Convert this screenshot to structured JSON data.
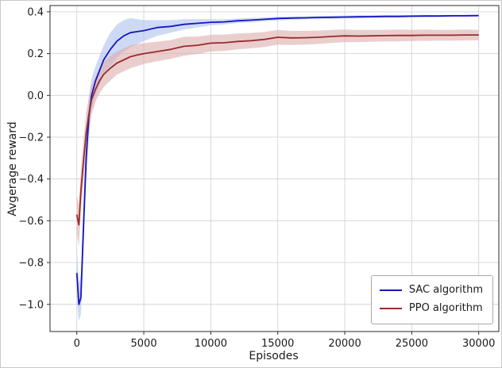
{
  "chart_data": {
    "type": "line",
    "title": "",
    "xlabel": "Episodes",
    "ylabel": "Avgerage reward",
    "xlim": [
      -2000,
      31500
    ],
    "ylim": [
      -1.13,
      0.43
    ],
    "xticks": [
      0,
      5000,
      10000,
      15000,
      20000,
      25000,
      30000
    ],
    "yticks": [
      -1.0,
      -0.8,
      -0.6,
      -0.4,
      -0.2,
      0.0,
      0.2,
      0.4
    ],
    "grid": true,
    "grid_color": "#d4d4d4",
    "legend_position": "lower right",
    "x": [
      0,
      150,
      300,
      500,
      700,
      900,
      1100,
      1400,
      1700,
      2000,
      2500,
      3000,
      3500,
      4000,
      4500,
      5000,
      6000,
      7000,
      8000,
      9000,
      10000,
      11000,
      12000,
      13000,
      14000,
      15000,
      16000,
      17000,
      18000,
      19000,
      20000,
      21000,
      22000,
      23000,
      24000,
      25000,
      26000,
      27000,
      28000,
      29000,
      30000
    ],
    "series": [
      {
        "name": "SAC algorithm",
        "color": "#1616bf",
        "band_color": "#aec2ee",
        "band_opacity": 0.6,
        "values": [
          -0.85,
          -1.0,
          -0.97,
          -0.62,
          -0.3,
          -0.1,
          0.0,
          0.07,
          0.12,
          0.17,
          0.22,
          0.26,
          0.285,
          0.3,
          0.305,
          0.31,
          0.325,
          0.33,
          0.34,
          0.345,
          0.35,
          0.352,
          0.357,
          0.36,
          0.364,
          0.368,
          0.37,
          0.371,
          0.373,
          0.374,
          0.375,
          0.376,
          0.377,
          0.378,
          0.378,
          0.379,
          0.38,
          0.38,
          0.381,
          0.381,
          0.382
        ],
        "band_lower": [
          -0.97,
          -1.08,
          -1.05,
          -0.74,
          -0.42,
          -0.2,
          -0.08,
          0.0,
          0.05,
          0.1,
          0.14,
          0.18,
          0.21,
          0.23,
          0.245,
          0.26,
          0.285,
          0.3,
          0.315,
          0.325,
          0.335,
          0.34,
          0.346,
          0.35,
          0.355,
          0.359,
          0.362,
          0.364,
          0.366,
          0.367,
          0.368,
          0.369,
          0.37,
          0.371,
          0.372,
          0.373,
          0.374,
          0.375,
          0.376,
          0.376,
          0.377
        ],
        "band_upper": [
          -0.73,
          -0.9,
          -0.86,
          -0.5,
          -0.18,
          0.0,
          0.08,
          0.14,
          0.19,
          0.24,
          0.3,
          0.34,
          0.36,
          0.37,
          0.365,
          0.36,
          0.36,
          0.36,
          0.365,
          0.365,
          0.365,
          0.364,
          0.368,
          0.37,
          0.373,
          0.377,
          0.378,
          0.378,
          0.38,
          0.381,
          0.382,
          0.383,
          0.384,
          0.385,
          0.384,
          0.385,
          0.386,
          0.385,
          0.386,
          0.386,
          0.387
        ]
      },
      {
        "name": "PPO algorithm",
        "color": "#992b2b",
        "band_color": "#dcaeae",
        "band_opacity": 0.6,
        "values": [
          -0.57,
          -0.62,
          -0.46,
          -0.31,
          -0.18,
          -0.09,
          -0.02,
          0.03,
          0.07,
          0.1,
          0.13,
          0.155,
          0.17,
          0.185,
          0.193,
          0.2,
          0.21,
          0.22,
          0.235,
          0.24,
          0.25,
          0.252,
          0.258,
          0.262,
          0.268,
          0.278,
          0.275,
          0.276,
          0.278,
          0.282,
          0.285,
          0.284,
          0.285,
          0.286,
          0.287,
          0.287,
          0.288,
          0.288,
          0.288,
          0.289,
          0.289
        ],
        "band_lower": [
          -0.66,
          -0.72,
          -0.56,
          -0.41,
          -0.28,
          -0.17,
          -0.09,
          -0.03,
          0.01,
          0.04,
          0.07,
          0.1,
          0.115,
          0.13,
          0.14,
          0.15,
          0.163,
          0.175,
          0.19,
          0.198,
          0.21,
          0.213,
          0.22,
          0.225,
          0.232,
          0.243,
          0.241,
          0.243,
          0.246,
          0.251,
          0.255,
          0.255,
          0.257,
          0.258,
          0.259,
          0.26,
          0.261,
          0.262,
          0.262,
          0.263,
          0.264
        ],
        "band_upper": [
          -0.48,
          -0.52,
          -0.36,
          -0.21,
          -0.08,
          -0.01,
          0.05,
          0.09,
          0.13,
          0.16,
          0.19,
          0.21,
          0.225,
          0.24,
          0.246,
          0.25,
          0.257,
          0.265,
          0.28,
          0.282,
          0.29,
          0.291,
          0.296,
          0.299,
          0.304,
          0.313,
          0.309,
          0.309,
          0.31,
          0.313,
          0.315,
          0.313,
          0.313,
          0.314,
          0.315,
          0.314,
          0.315,
          0.314,
          0.314,
          0.315,
          0.314
        ]
      }
    ]
  }
}
